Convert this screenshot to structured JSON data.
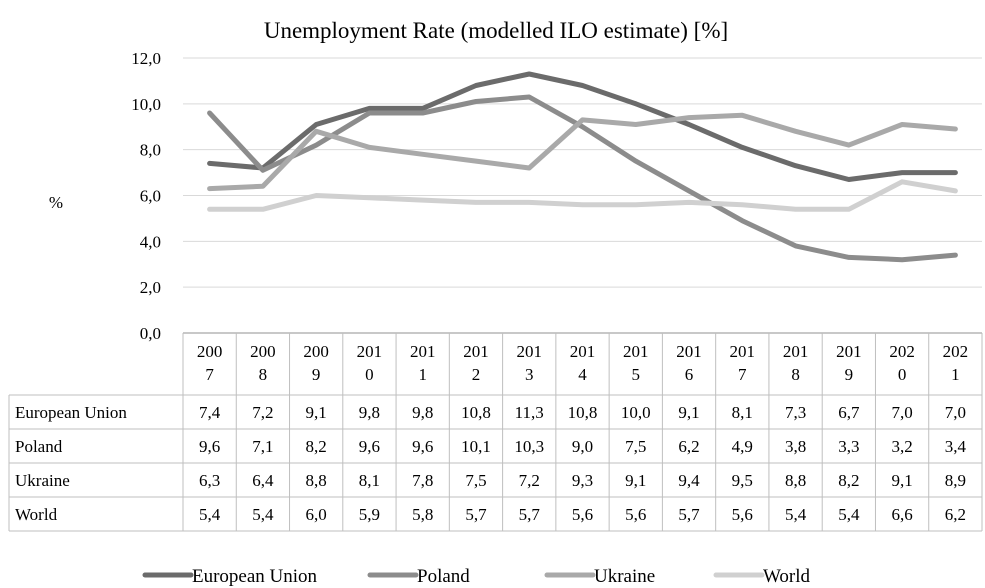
{
  "chart_data": {
    "type": "line",
    "title": "Unemployment Rate (modelled ILO estimate) [%]",
    "ylabel": "%",
    "xlabel": "",
    "ylim": [
      0,
      12
    ],
    "yticks": [
      "0,0",
      "2,0",
      "4,0",
      "6,0",
      "8,0",
      "10,0",
      "12,0"
    ],
    "grid": true,
    "legend_position": "bottom",
    "categories": [
      "2007",
      "2008",
      "2009",
      "2010",
      "2011",
      "2012",
      "2013",
      "2014",
      "2015",
      "2016",
      "2017",
      "2018",
      "2019",
      "2020",
      "2021"
    ],
    "category_labels": [
      [
        "200",
        "7"
      ],
      [
        "200",
        "8"
      ],
      [
        "200",
        "9"
      ],
      [
        "201",
        "0"
      ],
      [
        "201",
        "1"
      ],
      [
        "201",
        "2"
      ],
      [
        "201",
        "3"
      ],
      [
        "201",
        "4"
      ],
      [
        "201",
        "5"
      ],
      [
        "201",
        "6"
      ],
      [
        "201",
        "7"
      ],
      [
        "201",
        "8"
      ],
      [
        "201",
        "9"
      ],
      [
        "202",
        "0"
      ],
      [
        "202",
        "1"
      ]
    ],
    "series": [
      {
        "name": "European Union",
        "color": "#6b6b6b",
        "values": [
          7.4,
          7.2,
          9.1,
          9.8,
          9.8,
          10.8,
          11.3,
          10.8,
          10.0,
          9.1,
          8.1,
          7.3,
          6.7,
          7.0,
          7.0
        ],
        "labels": [
          "7,4",
          "7,2",
          "9,1",
          "9,8",
          "9,8",
          "10,8",
          "11,3",
          "10,8",
          "10,0",
          "9,1",
          "8,1",
          "7,3",
          "6,7",
          "7,0",
          "7,0"
        ]
      },
      {
        "name": "Poland",
        "color": "#8c8c8c",
        "values": [
          9.6,
          7.1,
          8.2,
          9.6,
          9.6,
          10.1,
          10.3,
          9.0,
          7.5,
          6.2,
          4.9,
          3.8,
          3.3,
          3.2,
          3.4
        ],
        "labels": [
          "9,6",
          "7,1",
          "8,2",
          "9,6",
          "9,6",
          "10,1",
          "10,3",
          "9,0",
          "7,5",
          "6,2",
          "4,9",
          "3,8",
          "3,3",
          "3,2",
          "3,4"
        ]
      },
      {
        "name": "Ukraine",
        "color": "#a9a9a9",
        "values": [
          6.3,
          6.4,
          8.8,
          8.1,
          7.8,
          7.5,
          7.2,
          9.3,
          9.1,
          9.4,
          9.5,
          8.8,
          8.2,
          9.1,
          8.9
        ],
        "labels": [
          "6,3",
          "6,4",
          "8,8",
          "8,1",
          "7,8",
          "7,5",
          "7,2",
          "9,3",
          "9,1",
          "9,4",
          "9,5",
          "8,8",
          "8,2",
          "9,1",
          "8,9"
        ]
      },
      {
        "name": "World",
        "color": "#d0d0d0",
        "values": [
          5.4,
          5.4,
          6.0,
          5.9,
          5.8,
          5.7,
          5.7,
          5.6,
          5.6,
          5.7,
          5.6,
          5.4,
          5.4,
          6.6,
          6.2
        ],
        "labels": [
          "5,4",
          "5,4",
          "6,0",
          "5,9",
          "5,8",
          "5,7",
          "5,7",
          "5,6",
          "5,6",
          "5,7",
          "5,6",
          "5,4",
          "5,4",
          "6,6",
          "6,2"
        ]
      }
    ]
  }
}
